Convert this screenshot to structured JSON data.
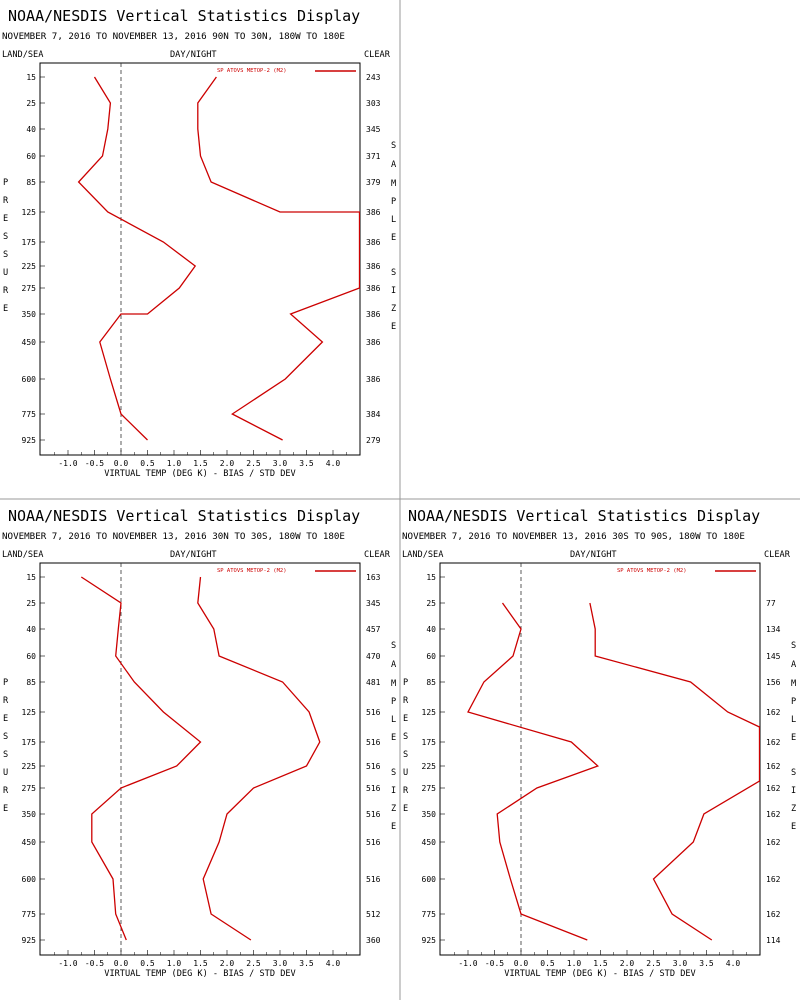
{
  "chart_data": [
    {
      "type": "line",
      "title": "NOAA/NESDIS Vertical Statistics Display",
      "subtitle": "NOVEMBER 7, 2016 TO NOVEMBER 13, 2016 90N TO 30N, 180W TO 180E",
      "label_left": "LAND/SEA",
      "label_center": "DAY/NIGHT",
      "label_right": "CLEAR",
      "ylabel": "PRESSURE",
      "y2label": "SAMPLE SIZE",
      "xlabel": "VIRTUAL TEMP (DEG K) - BIAS / STD DEV",
      "legend": "SP ATOVS METOP-2 (M2)",
      "line_color": "#cc0000",
      "xlim": [
        -1.5,
        4.5
      ],
      "x_ticks": [
        -1.0,
        -0.5,
        0.0,
        0.5,
        1.0,
        1.5,
        2.0,
        2.5,
        3.0,
        3.5,
        4.0
      ],
      "x_tick_labels": [
        "-1.0",
        "-0.5",
        "0.0",
        "0.5",
        "1.0",
        "1.5",
        "2.0",
        "2.5",
        "3.0",
        "3.5",
        "4.0"
      ],
      "pressure_levels": [
        "15",
        "25",
        "40",
        "60",
        "85",
        "125",
        "175",
        "225",
        "275",
        "350",
        "450",
        "600",
        "775",
        "925"
      ],
      "sample_size": [
        "243",
        "303",
        "345",
        "371",
        "379",
        "386",
        "386",
        "386",
        "386",
        "386",
        "386",
        "386",
        "384",
        "279"
      ],
      "series": [
        {
          "name": "BIAS",
          "values": [
            -0.5,
            -0.2,
            -0.25,
            -0.35,
            -0.8,
            -0.25,
            0.8,
            1.4,
            1.1,
            0.5,
            0.0,
            -0.4,
            -0.2,
            0.0,
            0.5
          ],
          "y": [
            "15",
            "25",
            "40",
            "60",
            "85",
            "125",
            "175",
            "225",
            "275",
            "350",
            "350",
            "450",
            "600",
            "775",
            "925"
          ]
        },
        {
          "name": "STD DEV",
          "values": [
            1.8,
            1.45,
            1.45,
            1.5,
            1.7,
            3.0,
            3.4,
            4.5,
            4.5,
            3.2,
            3.8,
            3.1,
            2.1,
            3.05
          ],
          "y": [
            "15",
            "25",
            "40",
            "60",
            "85",
            "125",
            "125",
            "125",
            "275",
            "350",
            "450",
            "600",
            "775",
            "925"
          ]
        }
      ]
    },
    {
      "type": "line",
      "title": "NOAA/NESDIS Vertical Statistics Display",
      "subtitle": "NOVEMBER 7, 2016 TO NOVEMBER 13, 2016 30N TO 30S, 180W TO 180E",
      "label_left": "LAND/SEA",
      "label_center": "DAY/NIGHT",
      "label_right": "CLEAR",
      "ylabel": "PRESSURE",
      "y2label": "SAMPLE SIZE",
      "xlabel": "VIRTUAL TEMP (DEG K) - BIAS / STD DEV",
      "legend": "SP ATOVS METOP-2 (M2)",
      "line_color": "#cc0000",
      "xlim": [
        -1.5,
        4.5
      ],
      "x_ticks": [
        -1.0,
        -0.5,
        0.0,
        0.5,
        1.0,
        1.5,
        2.0,
        2.5,
        3.0,
        3.5,
        4.0
      ],
      "x_tick_labels": [
        "-1.0",
        "-0.5",
        "0.0",
        "0.5",
        "1.0",
        "1.5",
        "2.0",
        "2.5",
        "3.0",
        "3.5",
        "4.0"
      ],
      "pressure_levels": [
        "15",
        "25",
        "40",
        "60",
        "85",
        "125",
        "175",
        "225",
        "275",
        "350",
        "450",
        "600",
        "775",
        "925"
      ],
      "sample_size": [
        "163",
        "345",
        "457",
        "470",
        "481",
        "516",
        "516",
        "516",
        "516",
        "516",
        "516",
        "516",
        "512",
        "360"
      ],
      "series": [
        {
          "name": "BIAS",
          "values": [
            -0.75,
            0.0,
            -0.05,
            -0.1,
            0.25,
            0.8,
            1.5,
            1.05,
            0.0,
            -0.55,
            -0.55,
            -0.15,
            -0.1,
            0.1
          ],
          "y": [
            "15",
            "25",
            "40",
            "60",
            "85",
            "125",
            "175",
            "225",
            "275",
            "350",
            "450",
            "600",
            "775",
            "925"
          ]
        },
        {
          "name": "STD DEV",
          "values": [
            1.5,
            1.45,
            1.75,
            1.85,
            3.05,
            3.55,
            3.75,
            3.5,
            2.5,
            2.0,
            1.85,
            1.55,
            1.7,
            2.45
          ],
          "y": [
            "15",
            "25",
            "40",
            "60",
            "85",
            "125",
            "175",
            "225",
            "275",
            "350",
            "450",
            "600",
            "775",
            "925"
          ]
        }
      ]
    },
    {
      "type": "line",
      "title": "NOAA/NESDIS Vertical Statistics Display",
      "subtitle": "NOVEMBER 7, 2016 TO NOVEMBER 13, 2016 30S TO 90S, 180W TO 180E",
      "label_left": "LAND/SEA",
      "label_center": "DAY/NIGHT",
      "label_right": "CLEAR",
      "ylabel": "PRESSURE",
      "y2label": "SAMPLE SIZE",
      "xlabel": "VIRTUAL TEMP (DEG K) - BIAS / STD DEV",
      "legend": "SP ATOVS METOP-2 (M2)",
      "line_color": "#cc0000",
      "xlim": [
        -1.5,
        4.5
      ],
      "x_ticks": [
        -1.0,
        -0.5,
        0.0,
        0.5,
        1.0,
        1.5,
        2.0,
        2.5,
        3.0,
        3.5,
        4.0
      ],
      "x_tick_labels": [
        "-1.0",
        "-0.5",
        "0.0",
        "0.5",
        "1.0",
        "1.5",
        "2.0",
        "2.5",
        "3.0",
        "3.5",
        "4.0"
      ],
      "pressure_levels": [
        "15",
        "25",
        "40",
        "60",
        "85",
        "125",
        "175",
        "225",
        "275",
        "350",
        "450",
        "600",
        "775",
        "925"
      ],
      "sample_size": [
        "",
        "77",
        "134",
        "145",
        "156",
        "162",
        "162",
        "162",
        "162",
        "162",
        "162",
        "162",
        "162",
        "114"
      ],
      "series": [
        {
          "name": "BIAS",
          "values": [
            -0.35,
            0.0,
            -0.15,
            -0.7,
            -1.0,
            0.95,
            1.45,
            0.3,
            -0.45,
            -0.4,
            -0.2,
            0.0,
            1.25
          ],
          "y": [
            "25",
            "40",
            "60",
            "85",
            "125",
            "175",
            "225",
            "275",
            "350",
            "450",
            "600",
            "775",
            "925"
          ]
        },
        {
          "name": "STD DEV",
          "values": [
            1.3,
            1.4,
            1.4,
            3.2,
            3.9,
            4.5,
            4.5,
            3.45,
            3.25,
            2.5,
            2.85,
            3.6
          ],
          "y": [
            "25",
            "40",
            "60",
            "85",
            "125",
            "150",
            "260",
            "350",
            "450",
            "600",
            "775",
            "925"
          ]
        }
      ]
    }
  ]
}
